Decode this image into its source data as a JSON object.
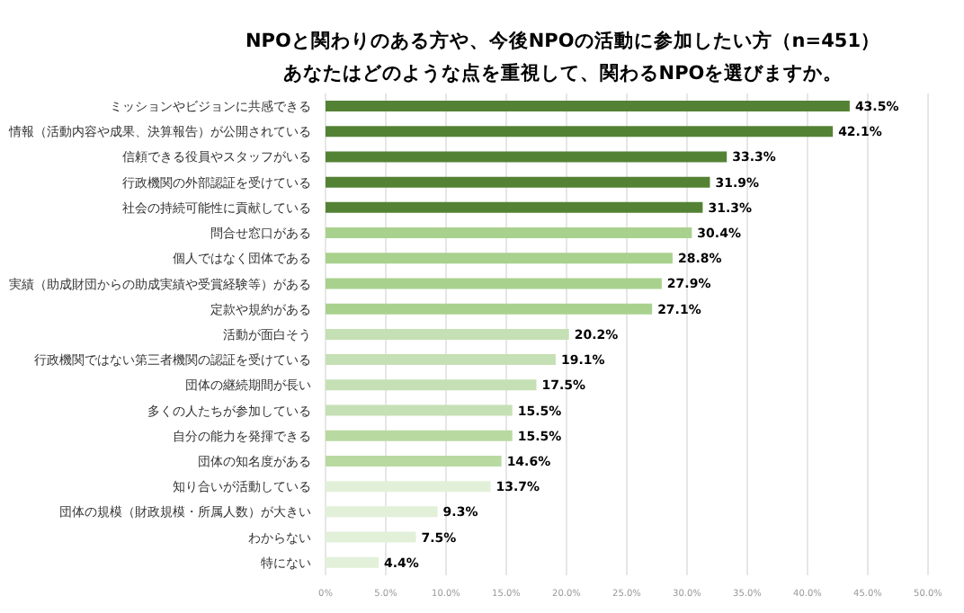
{
  "chart_data": {
    "type": "bar",
    "orientation": "horizontal",
    "title": "NPOと関わりのある方や、今後NPOの活動に参加したい方（n=451）",
    "subtitle": "あなたはどのような点を重視して、関わるNPOを選びますか。",
    "categories": [
      "ミッションやビジョンに共感できる",
      "情報（活動内容や成果、決算報告）が公開されている",
      "信頼できる役員やスタッフがいる",
      "行政機関の外部認証を受けている",
      "社会の持続可能性に貢献している",
      "問合せ窓口がある",
      "個人ではなく団体である",
      "実績（助成財団からの助成実績や受賞経験等）がある",
      "定款や規約がある",
      "活動が面白そう",
      "行政機関ではない第三者機関の認証を受けている",
      "団体の継続期間が長い",
      "多くの人たちが参加している",
      "自分の能力を発揮できる",
      "団体の知名度がある",
      "知り合いが活動している",
      "団体の規模（財政規模・所属人数）が大きい",
      "わからない",
      "特にない"
    ],
    "values": [
      43.5,
      42.1,
      33.3,
      31.9,
      31.3,
      30.4,
      28.8,
      27.9,
      27.1,
      20.2,
      19.1,
      17.5,
      15.5,
      15.5,
      14.6,
      13.7,
      9.3,
      7.5,
      4.4
    ],
    "value_labels": [
      "43.5%",
      "42.1%",
      "33.3%",
      "31.9%",
      "31.3%",
      "30.4%",
      "28.8%",
      "27.9%",
      "27.1%",
      "20.2%",
      "19.1%",
      "17.5%",
      "15.5%",
      "15.5%",
      "14.6%",
      "13.7%",
      "9.3%",
      "7.5%",
      "4.4%"
    ],
    "colors": [
      "#548235",
      "#548235",
      "#548235",
      "#548235",
      "#548235",
      "#a9d18e",
      "#a9d18e",
      "#a9d18e",
      "#a9d18e",
      "#c5e0b4",
      "#c5e0b4",
      "#c5e0b4",
      "#c5e0b4",
      "#b8d9a0",
      "#b8d9a0",
      "#e2f0d9",
      "#e2f0d9",
      "#e2f0d9",
      "#e2f0d9"
    ],
    "xlim": [
      0,
      50
    ],
    "xticks": [
      {
        "value": 0,
        "label": "0%"
      },
      {
        "value": 5,
        "label": "5.0%"
      },
      {
        "value": 10,
        "label": "10.0%"
      },
      {
        "value": 15,
        "label": "15.0%"
      },
      {
        "value": 20,
        "label": "20.0%"
      },
      {
        "value": 25,
        "label": "25.0%"
      },
      {
        "value": 30,
        "label": "30.0%"
      },
      {
        "value": 35,
        "label": "35.0%"
      },
      {
        "value": 40,
        "label": "40.0%"
      },
      {
        "value": 45,
        "label": "45.0%"
      },
      {
        "value": 50,
        "label": "50.0%"
      }
    ],
    "grid": "x"
  }
}
